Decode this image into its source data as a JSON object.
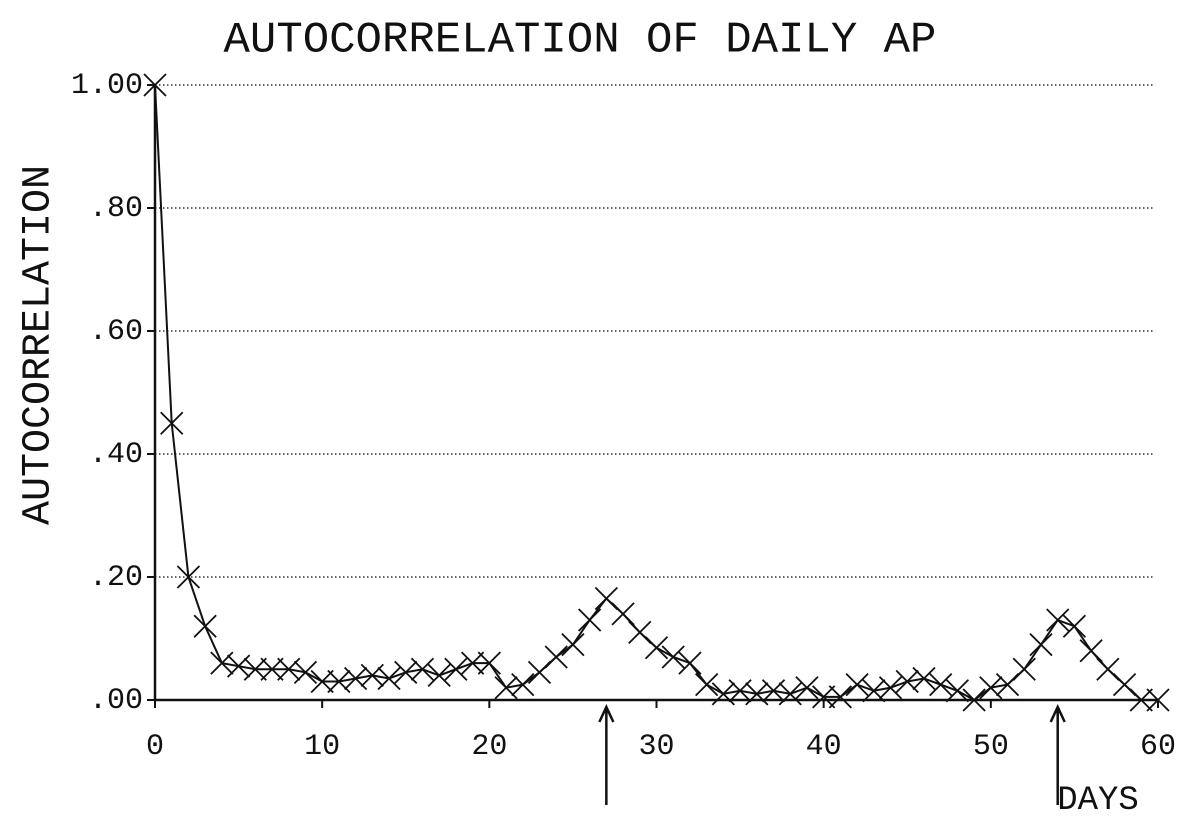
{
  "chart_data": {
    "type": "line",
    "title": "AUTOCORRELATION OF DAILY AP",
    "y_label": "AUTOCORRELATION",
    "x_label": "DAYS",
    "x": [
      0,
      1,
      2,
      3,
      4,
      5,
      6,
      7,
      8,
      9,
      10,
      11,
      12,
      13,
      14,
      15,
      16,
      17,
      18,
      19,
      20,
      21,
      22,
      23,
      24,
      25,
      26,
      27,
      28,
      29,
      30,
      31,
      32,
      33,
      34,
      35,
      36,
      37,
      38,
      39,
      40,
      41,
      42,
      43,
      44,
      45,
      46,
      47,
      48,
      49,
      50,
      51,
      52,
      53,
      54,
      55,
      56,
      57,
      58,
      59,
      60
    ],
    "series": [
      {
        "name": "autocorrelation",
        "color": "#111111",
        "values": [
          1.0,
          0.45,
          0.2,
          0.12,
          0.06,
          0.055,
          0.05,
          0.05,
          0.05,
          0.045,
          0.03,
          0.03,
          0.035,
          0.04,
          0.035,
          0.045,
          0.05,
          0.04,
          0.05,
          0.06,
          0.06,
          0.02,
          0.025,
          0.045,
          0.07,
          0.09,
          0.13,
          0.165,
          0.14,
          0.11,
          0.085,
          0.07,
          0.06,
          0.025,
          0.01,
          0.015,
          0.01,
          0.015,
          0.01,
          0.02,
          0.005,
          0.005,
          0.025,
          0.015,
          0.02,
          0.03,
          0.035,
          0.025,
          0.015,
          0.0,
          0.02,
          0.025,
          0.05,
          0.09,
          0.13,
          0.12,
          0.08,
          0.05,
          0.025,
          0.0,
          0.0
        ]
      }
    ],
    "xlim": [
      0,
      60
    ],
    "xticks": [
      0,
      10,
      20,
      30,
      40,
      50,
      60
    ],
    "ylim": [
      0,
      1
    ],
    "yticks": [
      {
        "value": 0,
        "label": ".00"
      },
      {
        "value": 0.2,
        "label": ".20"
      },
      {
        "value": 0.4,
        "label": ".40"
      },
      {
        "value": 0.6,
        "label": ".60"
      },
      {
        "value": 0.8,
        "label": ".80"
      },
      {
        "value": 1,
        "label": "1.00"
      }
    ],
    "grid": true,
    "arrows": [
      27,
      54
    ]
  }
}
